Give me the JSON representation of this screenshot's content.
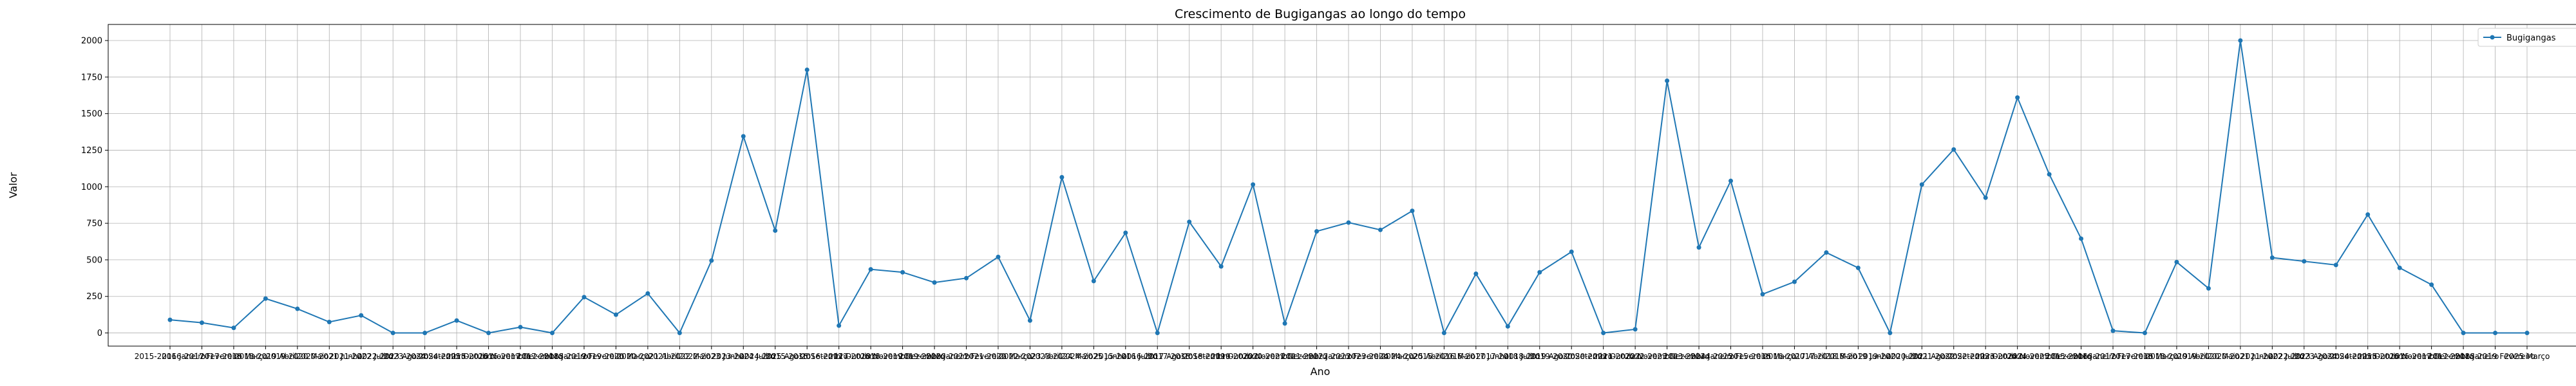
{
  "chart_data": {
    "type": "line",
    "title": "Crescimento de Bugigangas ao longo do tempo",
    "xlabel": "Ano",
    "ylabel": "Valor",
    "ylim": [
      -90,
      2110
    ],
    "yticks": [
      0,
      250,
      500,
      750,
      1000,
      1250,
      1500,
      1750,
      2000
    ],
    "grid": true,
    "legend_position": "top-right",
    "color": "#1f77b4",
    "series": [
      {
        "name": "Bugigangas",
        "values": [
          90,
          70,
          35,
          235,
          165,
          75,
          120,
          0,
          0,
          85,
          0,
          40,
          0,
          245,
          125,
          270,
          0,
          495,
          1345,
          700,
          1800,
          50,
          435,
          415,
          345,
          375,
          520,
          85,
          1065,
          355,
          685,
          0,
          760,
          455,
          1015,
          65,
          695,
          755,
          705,
          835,
          0,
          405,
          45,
          415,
          555,
          0,
          25,
          1725,
          585,
          1040,
          265,
          350,
          550,
          445,
          0,
          1015,
          1255,
          925,
          1610,
          1085,
          645,
          15,
          0,
          485,
          305,
          2000,
          515,
          490,
          465,
          810,
          445,
          330,
          0,
          0,
          0
        ]
      }
    ],
    "categories": [
      "2015-2016 Janeiro",
      "2016-2017 Fevereiro",
      "2017-2018 Março",
      "2018-2019 Abril",
      "2019-2020 Maio",
      "2020-2021 Junho",
      "2021-2022 Julho",
      "2022-2023 Agosto",
      "2023-2024 Setembro",
      "2024-2025 Outubro",
      "2015-2016 Novembro",
      "2016-2017 Dezembro",
      "2017-2018 Janeiro",
      "2018-2019 Fevereiro",
      "2019-2020 Março",
      "2020-2021 Abril",
      "2021-2022 Maio",
      "2022-2023 Junho",
      "2023-2024 Julho",
      "2024-2025 Agosto",
      "2015-2016 Setembro",
      "2016-2017 Outubro",
      "2017-2018 Novembro",
      "2018-2019 Dezembro",
      "2019-2020 Janeiro",
      "2020-2021 Fevereiro",
      "2021-2022 Março",
      "2022-2023 Abril",
      "2023-2024 Maio",
      "2024-2025 Junho",
      "2015-2016 Julho",
      "2016-2017 Agosto",
      "2017-2018 Setembro",
      "2018-2019 Outubro",
      "2019-2020 Novembro",
      "2020-2021 Dezembro",
      "2021-2022 Janeiro",
      "2022-2023 Fevereiro",
      "2023-2024 Março",
      "2024-2025 Abril",
      "2015-2016 Maio",
      "2016-2017 Junho",
      "2017-2018 Julho",
      "2018-2019 Agosto",
      "2019-2020 Setembro",
      "2020-2021 Outubro",
      "2021-2022 Novembro",
      "2022-2023 Dezembro",
      "2023-2024 Janeiro",
      "2024-2025 Fevereiro",
      "2015-2016 Março",
      "2016-2017 Abril",
      "2017-2018 Maio",
      "2018-2019 Junho",
      "2019-2020 Julho",
      "2020-2021 Agosto",
      "2021-2022 Setembro",
      "2022-2023 Outubro",
      "2023-2024 Novembro",
      "2024-2025 Dezembro",
      "2015-2016 Janeiro",
      "2016-2017 Fevereiro",
      "2017-2018 Março",
      "2018-2019 Abril",
      "2019-2020 Maio",
      "2020-2021 Junho",
      "2021-2022 Julho",
      "2022-2023 Agosto",
      "2023-2024 Setembro",
      "2024-2025 Outubro",
      "2015-2016 Novembro",
      "2016-2017 Dezembro",
      "2017-2018 Janeiro",
      "2018-2019 Fevereiro",
      "2025 Março"
    ]
  }
}
